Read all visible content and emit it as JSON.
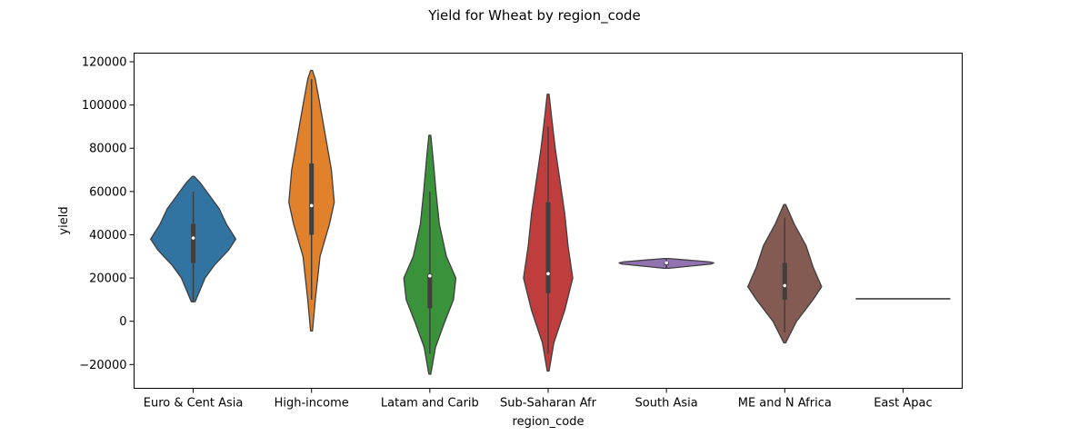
{
  "chart_data": {
    "type": "violin",
    "title": "Yield for Wheat by region_code",
    "xlabel": "region_code",
    "ylabel": "yield",
    "ylim": [
      -31000,
      124000
    ],
    "yticks": [
      -20000,
      0,
      20000,
      40000,
      60000,
      80000,
      100000,
      120000
    ],
    "ytick_labels": [
      "−20000",
      "0",
      "20000",
      "40000",
      "60000",
      "80000",
      "100000",
      "120000"
    ],
    "grid": false,
    "categories": [
      "Euro & Cent Asia",
      "High-income",
      "Latam and Carib",
      "Sub-Saharan Afr",
      "South Asia",
      "ME and N Africa",
      "East Apac"
    ],
    "series": [
      {
        "category": "Euro & Cent Asia",
        "color": "#3274a1",
        "min": 9000,
        "max": 67000,
        "q1": 27000,
        "median": 38500,
        "q3": 45000,
        "whisker_low": 9000,
        "whisker_high": 60000,
        "density": [
          [
            9000,
            0.04
          ],
          [
            20000,
            0.25
          ],
          [
            26000,
            0.45
          ],
          [
            33000,
            0.75
          ],
          [
            38000,
            0.9
          ],
          [
            45000,
            0.7
          ],
          [
            52000,
            0.55
          ],
          [
            58000,
            0.35
          ],
          [
            64000,
            0.15
          ],
          [
            67000,
            0.02
          ]
        ]
      },
      {
        "category": "High-income",
        "color": "#e1812c",
        "min": -4500,
        "max": 116000,
        "q1": 40000,
        "median": 53500,
        "q3": 73000,
        "whisker_low": 10000,
        "whisker_high": 112000,
        "density": [
          [
            -4500,
            0.02
          ],
          [
            10000,
            0.08
          ],
          [
            30000,
            0.18
          ],
          [
            45000,
            0.38
          ],
          [
            55000,
            0.48
          ],
          [
            70000,
            0.42
          ],
          [
            85000,
            0.3
          ],
          [
            100000,
            0.18
          ],
          [
            112000,
            0.08
          ],
          [
            116000,
            0.02
          ]
        ]
      },
      {
        "category": "Latam and Carib",
        "color": "#3a923a",
        "min": -24500,
        "max": 86000,
        "q1": 6000,
        "median": 21000,
        "q3": 22000,
        "whisker_low": -15000,
        "whisker_high": 60000,
        "density": [
          [
            -24500,
            0.02
          ],
          [
            -12000,
            0.12
          ],
          [
            0,
            0.32
          ],
          [
            10000,
            0.5
          ],
          [
            20000,
            0.55
          ],
          [
            30000,
            0.35
          ],
          [
            45000,
            0.2
          ],
          [
            60000,
            0.13
          ],
          [
            75000,
            0.07
          ],
          [
            86000,
            0.02
          ]
        ]
      },
      {
        "category": "Sub-Saharan Afr",
        "color": "#c03d3e",
        "min": -23000,
        "max": 105000,
        "q1": 13000,
        "median": 22000,
        "q3": 55000,
        "whisker_low": -15000,
        "whisker_high": 90000,
        "density": [
          [
            -23000,
            0.02
          ],
          [
            -10000,
            0.12
          ],
          [
            5000,
            0.35
          ],
          [
            20000,
            0.52
          ],
          [
            35000,
            0.42
          ],
          [
            50000,
            0.35
          ],
          [
            65000,
            0.25
          ],
          [
            80000,
            0.15
          ],
          [
            95000,
            0.07
          ],
          [
            105000,
            0.02
          ]
        ]
      },
      {
        "category": "South Asia",
        "color": "#9372b2",
        "min": 24500,
        "max": 29000,
        "q1": 26000,
        "median": 27000,
        "q3": 27500,
        "whisker_low": 24500,
        "whisker_high": 29000,
        "density": [
          [
            24500,
            0.05
          ],
          [
            25500,
            0.5
          ],
          [
            26500,
            0.95
          ],
          [
            27000,
            1.0
          ],
          [
            27500,
            0.9
          ],
          [
            28300,
            0.45
          ],
          [
            29000,
            0.05
          ]
        ]
      },
      {
        "category": "ME and N Africa",
        "color": "#845b53",
        "min": -10000,
        "max": 54000,
        "q1": 10000,
        "median": 16500,
        "q3": 27000,
        "whisker_low": -5000,
        "whisker_high": 48000,
        "density": [
          [
            -10000,
            0.02
          ],
          [
            0,
            0.25
          ],
          [
            10000,
            0.6
          ],
          [
            16000,
            0.78
          ],
          [
            25000,
            0.6
          ],
          [
            35000,
            0.45
          ],
          [
            45000,
            0.2
          ],
          [
            54000,
            0.02
          ]
        ]
      },
      {
        "category": "East Apac",
        "color": "#d684bd",
        "min": 10400,
        "max": 10400,
        "q1": 10400,
        "median": 10400,
        "q3": 10400,
        "whisker_low": 10400,
        "whisker_high": 10400,
        "density": []
      }
    ]
  }
}
